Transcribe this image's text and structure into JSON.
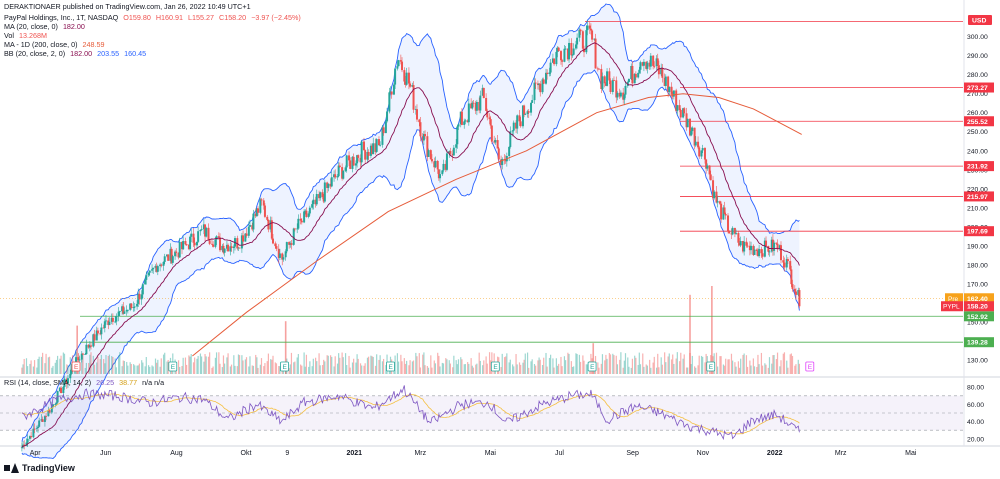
{
  "header": {
    "publisher": "DERAKTIONAER published on TradingView.com, Jan 26, 2022 10:49 UTC+1",
    "symbol": "PayPal Holdings, Inc., 1T, NASDAQ",
    "o": "O159.80",
    "h": "H160.91",
    "l": "L155.27",
    "c": "C158.20",
    "chg": "−3.97 (−2.45%)",
    "ma20_label": "MA (20, close, 0)",
    "ma20_val": "182.00",
    "vol_label": "Vol",
    "vol_val": "13.268M",
    "ma200_label": "MA - 1D (200, close, 0)",
    "ma200_val": "248.59",
    "bb_label": "BB (20, close, 2, 0)",
    "bb_mid": "182.00",
    "bb_up": "203.55",
    "bb_low": "160.45",
    "rsi_label": "RSI (14, close, SMA, 14, 2)",
    "rsi_val": "26.25",
    "rsi_ma": "38.77",
    "rsi_na": "n/a n/a"
  },
  "footer": {
    "brand": "TradingView"
  },
  "colors": {
    "up": "#26a69a",
    "down": "#ef5350",
    "bb": "#2962ff",
    "ma20": "#880e4f",
    "ma200": "#e65c3a",
    "level": "#f23645",
    "support": "#4caf50",
    "rsi": "#7e57c2",
    "rsi_ma": "#f5c042"
  },
  "chart_data": {
    "type": "candlestick",
    "currency": "USD",
    "price_axis": [
      "300.00",
      "290.00",
      "280.00",
      "270.00",
      "260.00",
      "250.00",
      "240.00",
      "230.00",
      "220.00",
      "210.00",
      "200.00",
      "190.00",
      "180.00",
      "170.00",
      "160.00",
      "150.00",
      "140.00",
      "130.00"
    ],
    "x_ticks": [
      "Apr",
      "Jun",
      "Aug",
      "Okt",
      "9",
      "2021",
      "Mrz",
      "Mai",
      "Jul",
      "Sep",
      "Nov",
      "2022",
      "Mrz",
      "Mai"
    ],
    "resistance_levels": [
      {
        "value": "273.27"
      },
      {
        "value": "255.52"
      },
      {
        "value": "231.92"
      },
      {
        "value": "215.97"
      },
      {
        "value": "197.69"
      }
    ],
    "support_levels": [
      {
        "value": "152.92"
      },
      {
        "value": "139.28"
      }
    ],
    "top_level": 308,
    "price_tags": {
      "pre": "Pre",
      "pre_val": "162.40",
      "sym": "PYPL",
      "last": "158.20"
    },
    "close_path": [
      [
        "2020-03-20",
        84
      ],
      [
        "2020-04-15",
        105
      ],
      [
        "2020-05-10",
        132
      ],
      [
        "2020-06-05",
        152
      ],
      [
        "2020-06-25",
        158
      ],
      [
        "2020-07-15",
        180
      ],
      [
        "2020-08-05",
        188
      ],
      [
        "2020-08-25",
        198
      ],
      [
        "2020-09-10",
        190
      ],
      [
        "2020-09-25",
        192
      ],
      [
        "2020-10-15",
        212
      ],
      [
        "2020-11-01",
        183
      ],
      [
        "2020-11-15",
        200
      ],
      [
        "2020-12-01",
        212
      ],
      [
        "2020-12-20",
        228
      ],
      [
        "2021-01-10",
        240
      ],
      [
        "2021-01-25",
        242
      ],
      [
        "2021-02-10",
        290
      ],
      [
        "2021-02-20",
        275
      ],
      [
        "2021-03-05",
        245
      ],
      [
        "2021-03-20",
        225
      ],
      [
        "2021-04-05",
        255
      ],
      [
        "2021-04-25",
        268
      ],
      [
        "2021-05-10",
        232
      ],
      [
        "2021-05-25",
        255
      ],
      [
        "2021-06-10",
        272
      ],
      [
        "2021-06-28",
        292
      ],
      [
        "2021-07-15",
        297
      ],
      [
        "2021-07-28",
        300
      ],
      [
        "2021-08-05",
        278
      ],
      [
        "2021-08-25",
        272
      ],
      [
        "2021-09-10",
        290
      ],
      [
        "2021-09-25",
        282
      ],
      [
        "2021-10-10",
        265
      ],
      [
        "2021-10-25",
        248
      ],
      [
        "2021-11-05",
        235
      ],
      [
        "2021-11-12",
        215
      ],
      [
        "2021-11-25",
        198
      ],
      [
        "2021-12-05",
        190
      ],
      [
        "2021-12-20",
        188
      ],
      [
        "2022-01-05",
        190
      ],
      [
        "2022-01-14",
        180
      ],
      [
        "2022-01-26",
        158
      ]
    ],
    "ma200_path": [
      [
        "2020-08-15",
        132
      ],
      [
        "2020-10-01",
        155
      ],
      [
        "2020-12-01",
        182
      ],
      [
        "2021-02-01",
        208
      ],
      [
        "2021-04-01",
        225
      ],
      [
        "2021-06-01",
        240
      ],
      [
        "2021-08-01",
        260
      ],
      [
        "2021-09-15",
        268
      ],
      [
        "2021-10-15",
        270
      ],
      [
        "2021-11-15",
        268
      ],
      [
        "2021-12-15",
        262
      ],
      [
        "2022-01-26",
        248.59
      ]
    ],
    "events": [
      {
        "label": "E",
        "date": "2020-05-06"
      },
      {
        "label": "E",
        "date": "2020-07-29"
      },
      {
        "label": "E",
        "date": "2020-11-03"
      },
      {
        "label": "E",
        "date": "2021-02-03"
      },
      {
        "label": "E",
        "date": "2021-05-05"
      },
      {
        "label": "E",
        "date": "2021-07-28"
      },
      {
        "label": "E",
        "date": "2021-11-08"
      },
      {
        "label": "E",
        "date": "2022-02-02"
      }
    ],
    "volume_spikes": [
      {
        "date": "2021-10-21",
        "rel": 0.9
      },
      {
        "date": "2021-11-09",
        "rel": 1.0
      },
      {
        "date": "2021-07-29",
        "rel": 0.35
      },
      {
        "date": "2020-11-04",
        "rel": 0.6
      },
      {
        "date": "2020-05-07",
        "rel": 0.55
      }
    ],
    "rsi": {
      "axis": [
        "80.00",
        "60.00",
        "40.00",
        "20.00"
      ],
      "path": [
        [
          "2020-03-20",
          45
        ],
        [
          "2020-04-20",
          65
        ],
        [
          "2020-05-15",
          72
        ],
        [
          "2020-06-10",
          70
        ],
        [
          "2020-07-10",
          62
        ],
        [
          "2020-08-05",
          68
        ],
        [
          "2020-08-25",
          66
        ],
        [
          "2020-09-15",
          42
        ],
        [
          "2020-10-10",
          60
        ],
        [
          "2020-11-01",
          40
        ],
        [
          "2020-11-20",
          62
        ],
        [
          "2020-12-20",
          70
        ],
        [
          "2021-01-20",
          55
        ],
        [
          "2021-02-15",
          78
        ],
        [
          "2021-03-10",
          38
        ],
        [
          "2021-04-05",
          60
        ],
        [
          "2021-04-30",
          62
        ],
        [
          "2021-05-15",
          38
        ],
        [
          "2021-06-15",
          60
        ],
        [
          "2021-07-10",
          70
        ],
        [
          "2021-07-28",
          72
        ],
        [
          "2021-08-10",
          42
        ],
        [
          "2021-09-05",
          58
        ],
        [
          "2021-09-25",
          50
        ],
        [
          "2021-10-20",
          35
        ],
        [
          "2021-11-10",
          28
        ],
        [
          "2021-11-28",
          22
        ],
        [
          "2021-12-15",
          42
        ],
        [
          "2022-01-05",
          48
        ],
        [
          "2022-01-26",
          26
        ]
      ]
    }
  }
}
